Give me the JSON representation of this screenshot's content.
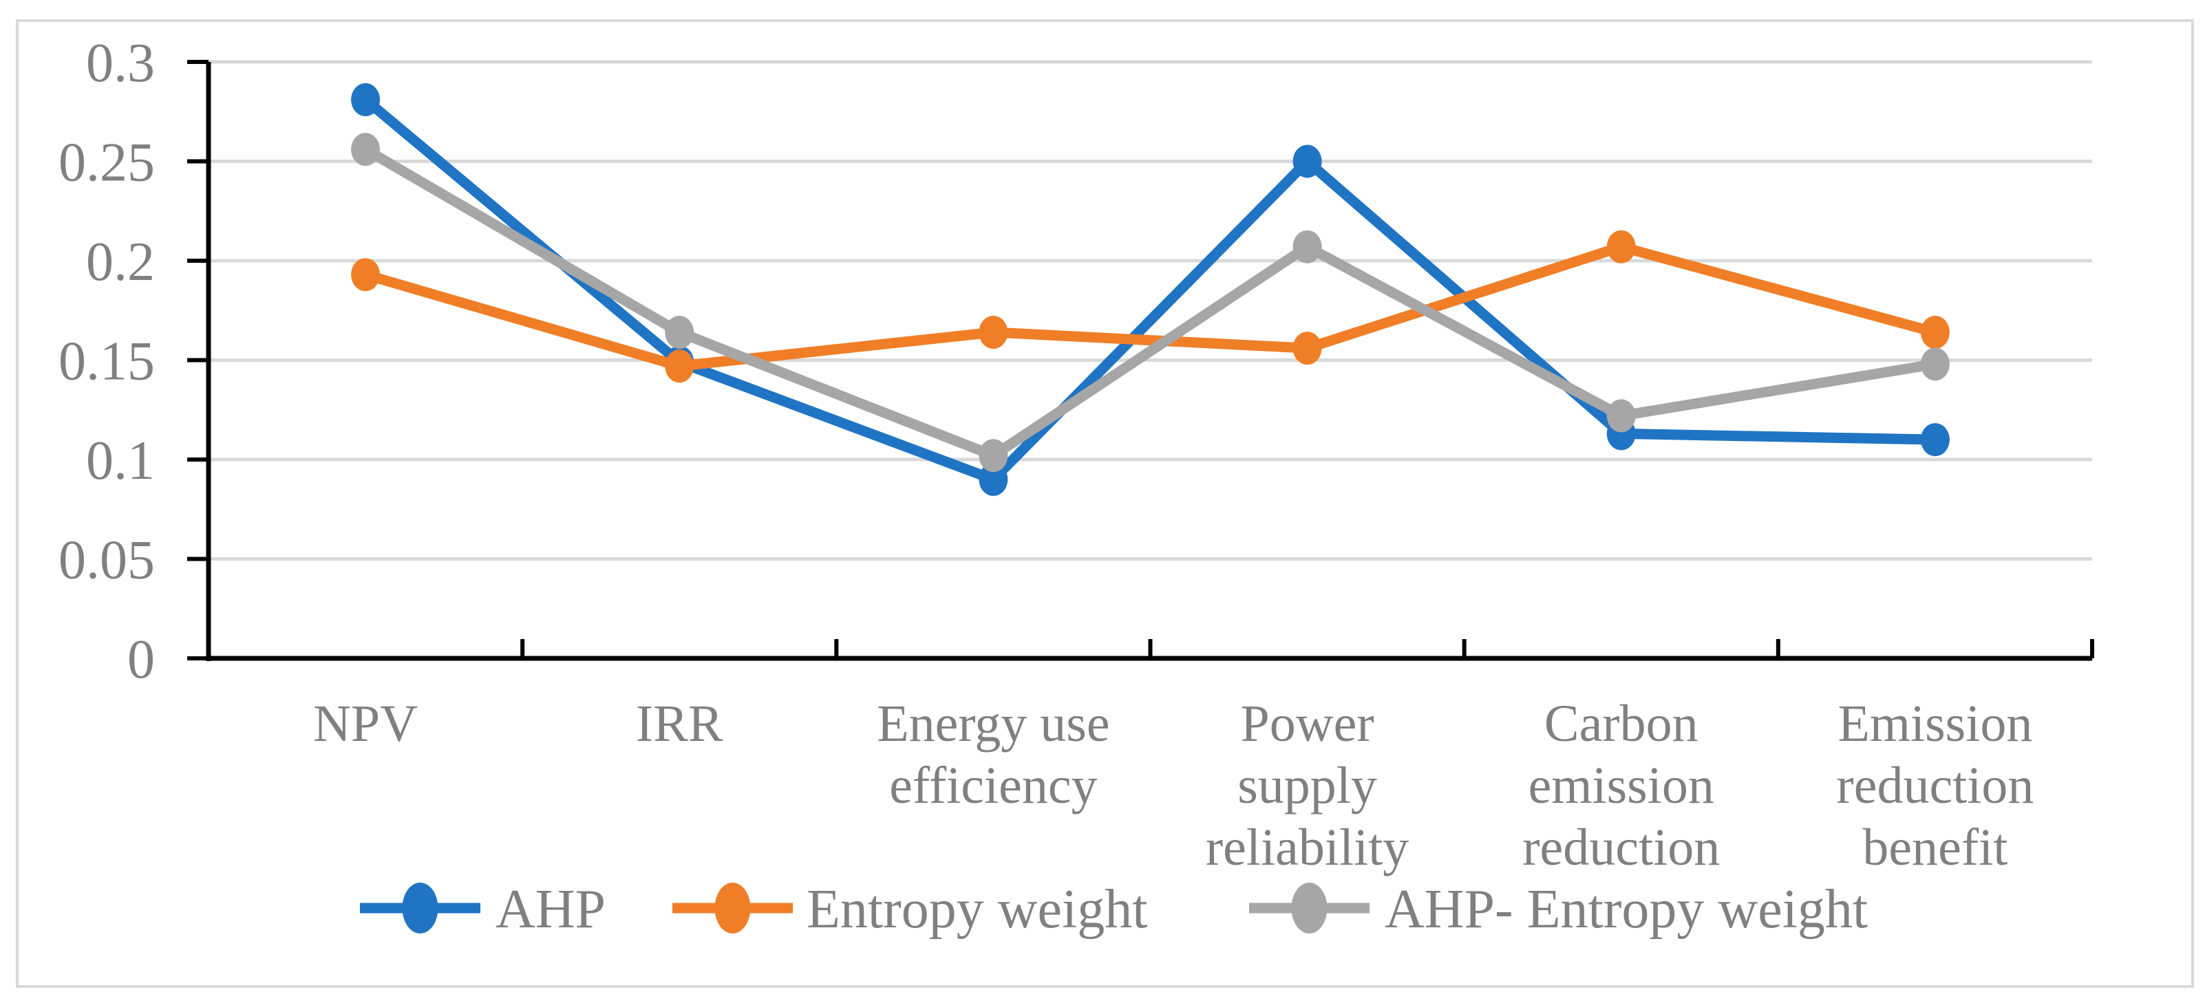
{
  "chart_data": {
    "type": "line",
    "title": "",
    "xlabel": "",
    "ylabel": "",
    "categories": [
      "NPV",
      "IRR",
      "Energy use efficiency",
      "Power supply reliability",
      "Carbon emission reduction",
      "Emission reduction benefit"
    ],
    "category_lines": [
      [
        "NPV"
      ],
      [
        "IRR"
      ],
      [
        "Energy use",
        "efficiency"
      ],
      [
        "Power",
        "supply",
        "reliability"
      ],
      [
        "Carbon",
        "emission",
        "reduction"
      ],
      [
        "Emission",
        "reduction",
        "benefit"
      ]
    ],
    "series": [
      {
        "name": "AHP",
        "color": "#2074C4",
        "values": [
          0.281,
          0.149,
          0.09,
          0.25,
          0.113,
          0.11
        ]
      },
      {
        "name": "Entropy weight",
        "color": "#F07E27",
        "values": [
          0.193,
          0.147,
          0.164,
          0.156,
          0.207,
          0.164
        ]
      },
      {
        "name": "AHP- Entropy weight",
        "color": "#A6A6A6",
        "values": [
          0.256,
          0.164,
          0.102,
          0.207,
          0.122,
          0.148
        ]
      }
    ],
    "ylim": [
      0,
      0.3
    ],
    "y_tick_step": 0.05,
    "y_ticks": [
      {
        "value": 0.3,
        "label": "0.3"
      },
      {
        "value": 0.25,
        "label": "0.25"
      },
      {
        "value": 0.2,
        "label": "0.2"
      },
      {
        "value": 0.15,
        "label": "0.15"
      },
      {
        "value": 0.1,
        "label": "0.1"
      },
      {
        "value": 0.05,
        "label": "0.05"
      },
      {
        "value": 0,
        "label": "0"
      }
    ],
    "grid": true,
    "legend_position": "bottom",
    "marker": "circle",
    "colors": {
      "axis": "#000000",
      "grid": "#D9D9D9",
      "frame": "#D9D9D9",
      "text": "#808080",
      "background": "#FFFFFF"
    }
  }
}
